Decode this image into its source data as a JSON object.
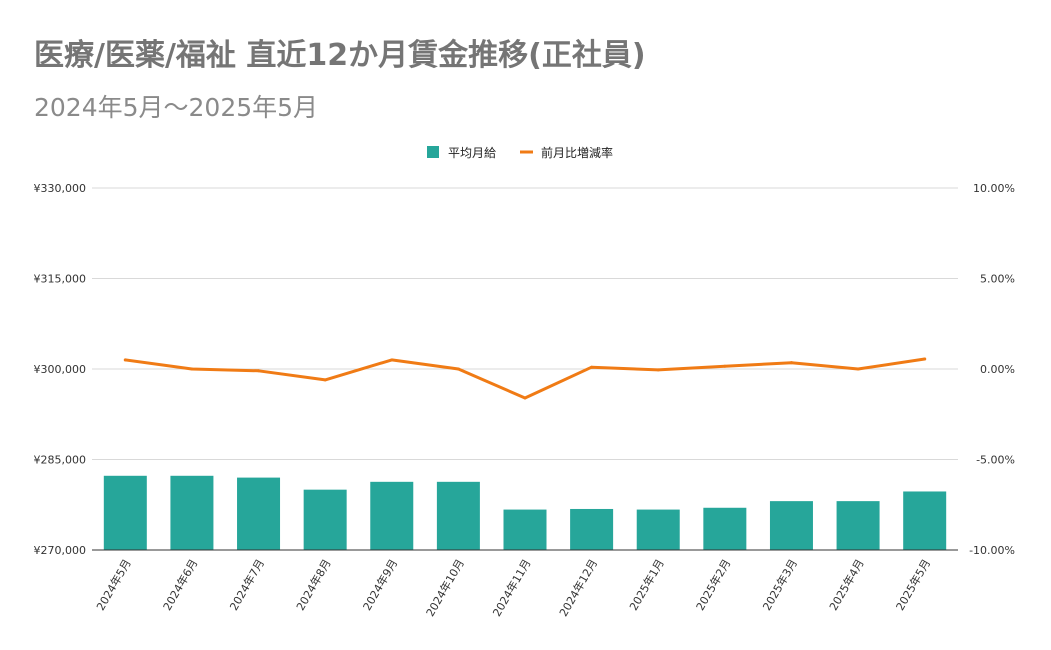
{
  "chart_data": {
    "type": "bar",
    "title": "医療/医薬/福祉 直近12か月賃金推移(正社員)",
    "subtitle": "2024年5月〜2025年5月",
    "categories": [
      "2024年5月",
      "2024年6月",
      "2024年7月",
      "2024年8月",
      "2024年9月",
      "2024年10月",
      "2024年11月",
      "2024年12月",
      "2025年1月",
      "2025年2月",
      "2025年3月",
      "2025年4月",
      "2025年5月"
    ],
    "series": [
      {
        "name": "平均月給",
        "type": "bar",
        "axis": "left",
        "color": "#26a69a",
        "values": [
          282300,
          282300,
          282000,
          280000,
          281300,
          281300,
          276700,
          276800,
          276700,
          277000,
          278100,
          278100,
          279700
        ]
      },
      {
        "name": "前月比増減率",
        "type": "line",
        "axis": "right",
        "color": "#f07b15",
        "values": [
          0.5,
          0.0,
          -0.1,
          -0.6,
          0.5,
          0.0,
          -1.6,
          0.1,
          -0.05,
          0.15,
          0.35,
          0.0,
          0.55
        ]
      }
    ],
    "y_left": {
      "min": 270000,
      "max": 330000,
      "ticks": [
        270000,
        285000,
        300000,
        315000,
        330000
      ],
      "tick_labels": [
        "¥270,000",
        "¥285,000",
        "¥300,000",
        "¥315,000",
        "¥330,000"
      ]
    },
    "y_right": {
      "min": -10,
      "max": 10,
      "ticks": [
        -10,
        -5,
        0,
        5,
        10
      ],
      "tick_labels": [
        "-10.00%",
        "-5.00%",
        "0.00%",
        "5.00%",
        "10.00%"
      ]
    },
    "grid": true,
    "legend_position": "top-center",
    "gridline_color": "#d9d9d9",
    "xlabel": "",
    "ylabel": ""
  }
}
